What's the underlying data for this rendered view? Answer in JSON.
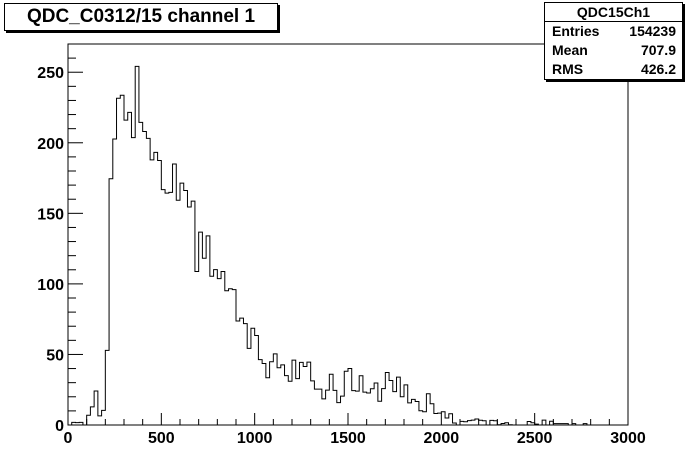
{
  "title": "QDC_C0312/15 channel 1",
  "stats": {
    "name": "QDC15Ch1",
    "rows": [
      {
        "label": "Entries",
        "value": "154239"
      },
      {
        "label": "Mean",
        "value": "707.9"
      },
      {
        "label": "RMS",
        "value": "426.2"
      }
    ]
  },
  "chart_data": {
    "type": "histogram",
    "title": "QDC_C0312/15 channel 1",
    "xlabel": "",
    "ylabel": "",
    "xlim": [
      0,
      3000
    ],
    "ylim": [
      0,
      270
    ],
    "grid": false,
    "x_ticks": [
      0,
      500,
      1000,
      1500,
      2000,
      2500,
      3000
    ],
    "y_ticks": [
      0,
      50,
      100,
      150,
      200,
      250
    ],
    "bin_width": 20,
    "profile": {
      "x": [
        0,
        100,
        120,
        130,
        140,
        150,
        170,
        190,
        200,
        210,
        220,
        240,
        260,
        280,
        300,
        350,
        400,
        450,
        500,
        550,
        600,
        650,
        700,
        750,
        800,
        850,
        900,
        950,
        1000,
        1050,
        1100,
        1150,
        1200,
        1250,
        1300,
        1350,
        1400,
        1450,
        1500,
        1550,
        1600,
        1650,
        1700,
        1750,
        1800,
        1850,
        1900,
        1950,
        2000,
        2050,
        2100,
        2150,
        2200,
        2300,
        2400,
        2500,
        2600,
        2700,
        2800,
        2900,
        3000
      ],
      "y": [
        0,
        1,
        5,
        18,
        55,
        25,
        5,
        8,
        20,
        60,
        140,
        195,
        222,
        232,
        232,
        228,
        220,
        200,
        182,
        170,
        158,
        148,
        134,
        118,
        108,
        95,
        85,
        75,
        64,
        55,
        48,
        41,
        37,
        34,
        30,
        28,
        27,
        27,
        28,
        28,
        27,
        26,
        25,
        24,
        22,
        19,
        16,
        13,
        10,
        7,
        5,
        3,
        2,
        1,
        0.5,
        0.3,
        0.2,
        0.1,
        0.05,
        0,
        0
      ]
    },
    "fluctuation": {
      "seed": 7,
      "amplitude_factor": 1.6,
      "amplitude_min": 2.5
    }
  }
}
